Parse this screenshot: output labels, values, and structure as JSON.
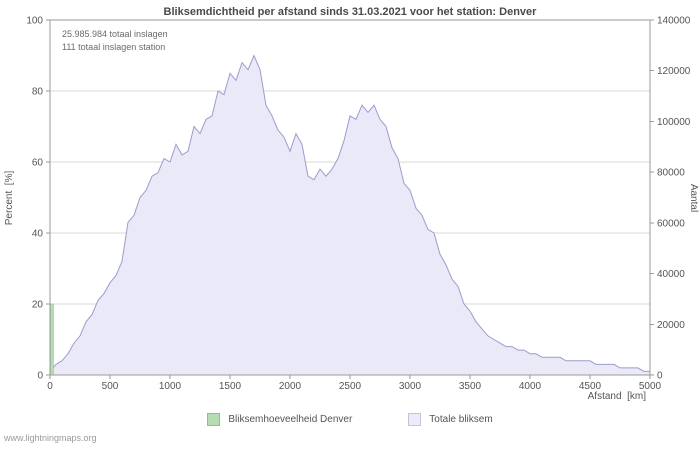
{
  "title": "Bliksemdichtheid per afstand sinds 31.03.2021 voor het station: Denver",
  "annotations": {
    "total_strikes": "25.985.984 totaal inslagen",
    "station_strikes": "111 totaal inslagen station"
  },
  "watermark": "www.lightningmaps.org",
  "legend": [
    {
      "label": "Bliksemhoeveelheid Denver",
      "color": "#b6ddb2",
      "border": "#8fc08b"
    },
    {
      "label": "Totale bliksem",
      "color": "#ebebf9",
      "border": "#c3c3de"
    }
  ],
  "chart_data": {
    "type": "area",
    "title": "Bliksemdichtheid per afstand sinds 31.03.2021 voor het station: Denver",
    "xlabel": "Afstand  [km]",
    "ylabel_left": "Percent  [%]",
    "ylabel_right": "Aantal",
    "xlim": [
      0,
      5000
    ],
    "ylim_left": [
      0,
      100
    ],
    "ylim_right": [
      0,
      140000
    ],
    "x_ticks": [
      0,
      500,
      1000,
      1500,
      2000,
      2500,
      3000,
      3500,
      4000,
      4500,
      5000
    ],
    "y_ticks_left": [
      0,
      20,
      40,
      60,
      80,
      100
    ],
    "y_ticks_right": [
      0,
      20000,
      40000,
      60000,
      80000,
      100000,
      120000,
      140000
    ],
    "grid": "horizontal",
    "legend_position": "bottom",
    "series_name": "Totale bliksem",
    "x": [
      0,
      50,
      100,
      150,
      200,
      250,
      300,
      350,
      400,
      450,
      500,
      550,
      600,
      650,
      700,
      750,
      800,
      850,
      900,
      950,
      1000,
      1050,
      1100,
      1150,
      1200,
      1250,
      1300,
      1350,
      1400,
      1450,
      1500,
      1550,
      1600,
      1650,
      1700,
      1750,
      1800,
      1850,
      1900,
      1950,
      2000,
      2050,
      2100,
      2150,
      2200,
      2250,
      2300,
      2350,
      2400,
      2450,
      2500,
      2550,
      2600,
      2650,
      2700,
      2750,
      2800,
      2850,
      2900,
      2950,
      3000,
      3050,
      3100,
      3150,
      3200,
      3250,
      3300,
      3350,
      3400,
      3450,
      3500,
      3550,
      3600,
      3650,
      3700,
      3750,
      3800,
      3850,
      3900,
      3950,
      4000,
      4050,
      4100,
      4150,
      4200,
      4250,
      4300,
      4350,
      4400,
      4450,
      4500,
      4550,
      4600,
      4650,
      4700,
      4750,
      4800,
      4850,
      4900,
      4950,
      5000
    ],
    "percent_values": [
      1,
      3,
      4,
      6,
      9,
      11,
      15,
      17,
      21,
      23,
      26,
      28,
      32,
      43,
      45,
      50,
      52,
      56,
      57,
      61,
      60,
      65,
      62,
      63,
      70,
      68,
      72,
      73,
      80,
      79,
      85,
      83,
      88,
      86,
      90,
      86,
      76,
      73,
      69,
      67,
      63,
      68,
      65,
      56,
      55,
      58,
      56,
      58,
      61,
      66,
      73,
      72,
      76,
      74,
      76,
      72,
      70,
      64,
      61,
      54,
      52,
      47,
      45,
      41,
      40,
      34,
      31,
      27,
      25,
      20,
      18,
      15,
      13,
      11,
      10,
      9,
      8,
      8,
      7,
      7,
      6,
      6,
      5,
      5,
      5,
      5,
      4,
      4,
      4,
      4,
      4,
      3,
      3,
      3,
      3,
      2,
      2,
      2,
      2,
      1,
      1
    ],
    "station_bar": {
      "x": 0,
      "percent": 20,
      "label": "Bliksemhoeveelheid Denver"
    },
    "colors": {
      "area_fill": "#e9e9f8",
      "area_line": "#9c9ccc",
      "bar_fill": "#b6ddb2",
      "bar_line": "#8fc08b",
      "grid": "#d9d9d9",
      "frame": "#9a9a9a",
      "text": "#555555"
    }
  }
}
